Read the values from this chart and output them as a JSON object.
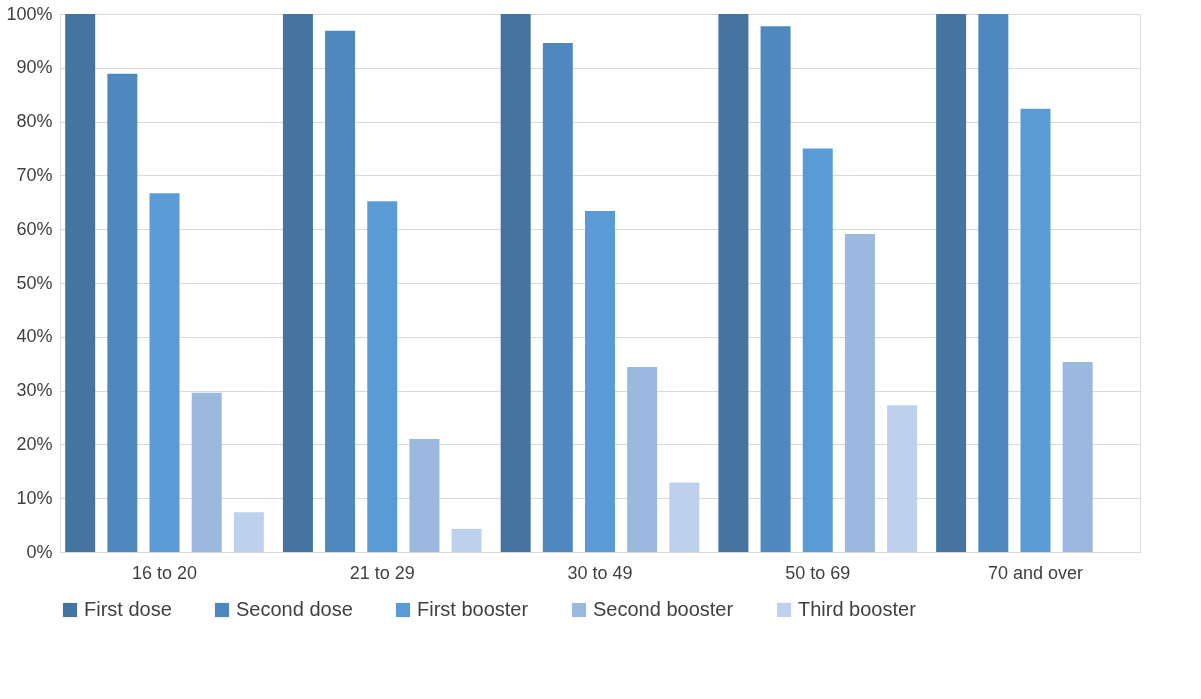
{
  "chart_data": {
    "type": "bar",
    "categories": [
      "16 to 20",
      "21 to 29",
      "30 to 49",
      "50 to 69",
      "70 and over"
    ],
    "series": [
      {
        "name": "First dose",
        "color": "#44749f",
        "values": [
          100,
          100,
          100,
          100,
          100
        ]
      },
      {
        "name": "Second dose",
        "color": "#4e88bf",
        "values": [
          88.9,
          96.9,
          94.6,
          97.7,
          100
        ]
      },
      {
        "name": "First booster",
        "color": "#5b9bd5",
        "values": [
          66.7,
          65.2,
          63.4,
          75,
          82.4
        ]
      },
      {
        "name": "Second booster",
        "color": "#9bb8de",
        "values": [
          29.6,
          21,
          34.4,
          59.1,
          35.3
        ]
      },
      {
        "name": "Third booster",
        "color": "#bdd1ec",
        "values": [
          7.4,
          4.3,
          12.9,
          27.3,
          null
        ]
      }
    ],
    "ylim": [
      0,
      100
    ],
    "yticks": [
      {
        "value": 0,
        "label": "0%"
      },
      {
        "value": 10,
        "label": "10%"
      },
      {
        "value": 20,
        "label": "20%"
      },
      {
        "value": 30,
        "label": "30%"
      },
      {
        "value": 40,
        "label": "40%"
      },
      {
        "value": 50,
        "label": "50%"
      },
      {
        "value": 60,
        "label": "60%"
      },
      {
        "value": 70,
        "label": "70%"
      },
      {
        "value": 80,
        "label": "80%"
      },
      {
        "value": 90,
        "label": "90%"
      },
      {
        "value": 100,
        "label": "100%"
      }
    ],
    "grid": "y",
    "legend": "bottom"
  }
}
